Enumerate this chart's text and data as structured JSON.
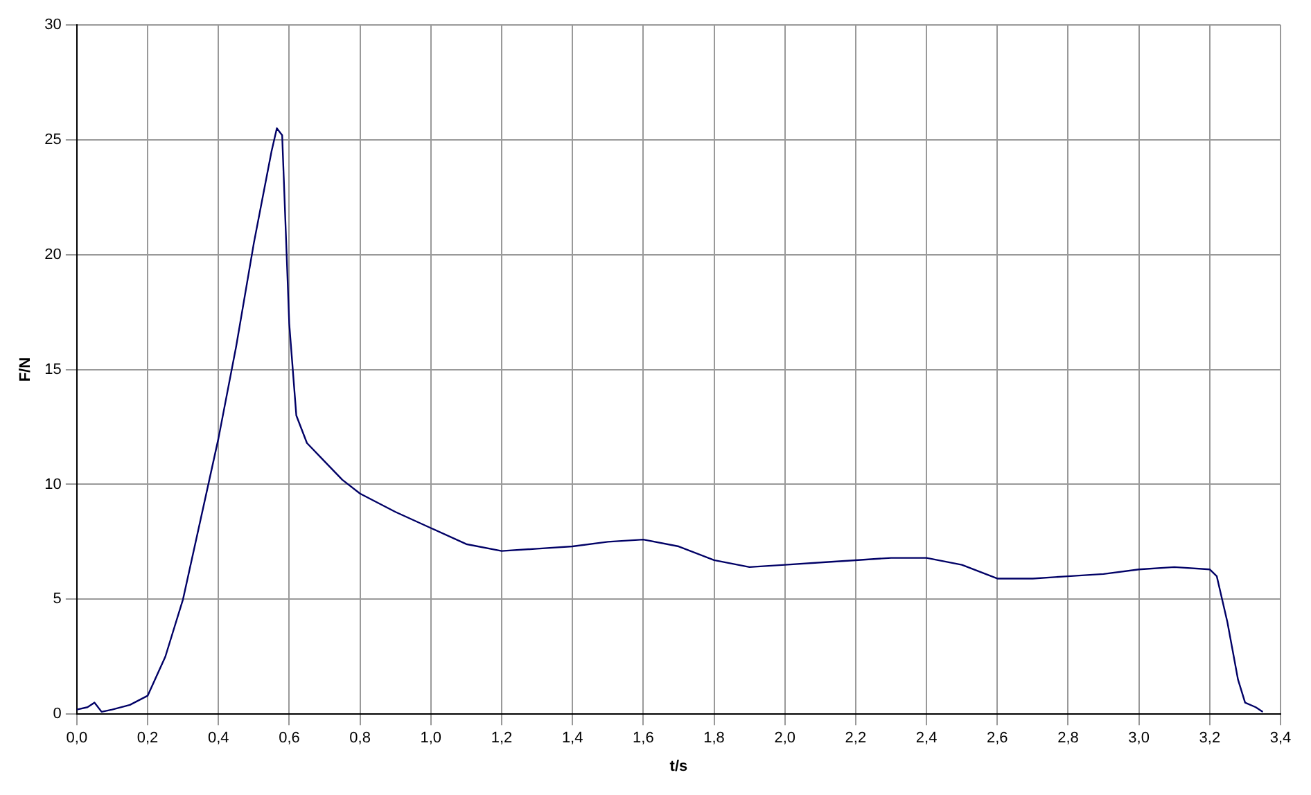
{
  "chart_data": {
    "type": "line",
    "xlabel": "t/s",
    "ylabel": "F/N",
    "x": [
      0,
      0.03,
      0.05,
      0.07,
      0.1,
      0.15,
      0.2,
      0.25,
      0.3,
      0.35,
      0.4,
      0.45,
      0.5,
      0.55,
      0.565,
      0.58,
      0.6,
      0.62,
      0.65,
      0.7,
      0.75,
      0.8,
      0.9,
      1.0,
      1.1,
      1.2,
      1.3,
      1.4,
      1.5,
      1.6,
      1.7,
      1.8,
      1.9,
      2.0,
      2.1,
      2.2,
      2.3,
      2.4,
      2.5,
      2.6,
      2.7,
      2.8,
      2.9,
      3.0,
      3.1,
      3.2,
      3.22,
      3.25,
      3.28,
      3.3,
      3.33,
      3.35
    ],
    "series": [
      {
        "color": "#000066",
        "values": [
          0.2,
          0.3,
          0.5,
          0.1,
          0.2,
          0.4,
          0.8,
          2.5,
          5,
          8.5,
          12,
          16,
          20.5,
          24.5,
          25.5,
          25.2,
          17,
          13,
          11.8,
          11,
          10.2,
          9.6,
          8.8,
          8.1,
          7.4,
          7.1,
          7.2,
          7.3,
          7.5,
          7.6,
          7.3,
          6.7,
          6.4,
          6.5,
          6.6,
          6.7,
          6.8,
          6.8,
          6.5,
          5.9,
          5.9,
          6,
          6.1,
          6.3,
          6.4,
          6.3,
          6,
          4,
          1.5,
          0.5,
          0.3,
          0.1
        ]
      }
    ],
    "xlim": [
      0,
      3.4
    ],
    "xticks": [
      {
        "value": 0,
        "label": "0,0"
      },
      {
        "value": 0.2,
        "label": "0,2"
      },
      {
        "value": 0.4,
        "label": "0,4"
      },
      {
        "value": 0.6,
        "label": "0,6"
      },
      {
        "value": 0.8,
        "label": "0,8"
      },
      {
        "value": 1,
        "label": "1,0"
      },
      {
        "value": 1.2,
        "label": "1,2"
      },
      {
        "value": 1.4,
        "label": "1,4"
      },
      {
        "value": 1.6,
        "label": "1,6"
      },
      {
        "value": 1.8,
        "label": "1,8"
      },
      {
        "value": 2,
        "label": "2,0"
      },
      {
        "value": 2.2,
        "label": "2,2"
      },
      {
        "value": 2.4,
        "label": "2,4"
      },
      {
        "value": 2.6,
        "label": "2,6"
      },
      {
        "value": 2.8,
        "label": "2,8"
      },
      {
        "value": 3,
        "label": "3,0"
      },
      {
        "value": 3.2,
        "label": "3,2"
      },
      {
        "value": 3.4,
        "label": "3,4"
      }
    ],
    "ylim": [
      0,
      30
    ],
    "yticks": [
      0,
      5,
      10,
      15,
      20,
      25,
      30
    ],
    "grid": true,
    "legend": false,
    "marker": "none",
    "line_style": "solid"
  }
}
